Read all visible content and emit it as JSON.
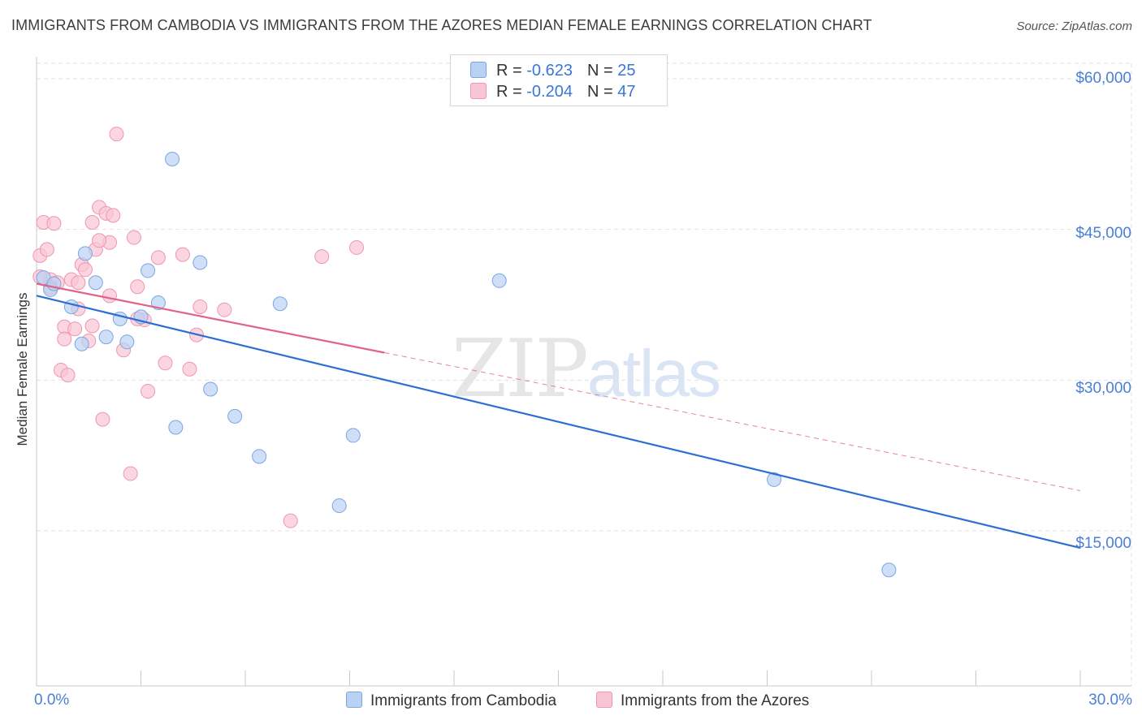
{
  "title": "IMMIGRANTS FROM CAMBODIA VS IMMIGRANTS FROM THE AZORES MEDIAN FEMALE EARNINGS CORRELATION CHART",
  "source": "Source: ZipAtlas.com",
  "watermark": {
    "part1": "ZIP",
    "part2": "atlas"
  },
  "legend": {
    "rows": [
      {
        "r_label": "R = ",
        "r_value": "-0.623",
        "n_label": "N = ",
        "n_value": "25",
        "color": "#a8c8f0"
      },
      {
        "r_label": "R = ",
        "r_value": "-0.204",
        "n_label": "N = ",
        "n_value": "47",
        "color": "#f7b6c8"
      }
    ]
  },
  "colors": {
    "cambodia_fill": "#b9d2f3",
    "cambodia_stroke": "#7aa7e2",
    "cambodia_line": "#2d6fd1",
    "azores_fill": "#f9c4d3",
    "azores_stroke": "#ee96b0",
    "azores_line": "#e0638c",
    "grid": "#e2e2e2",
    "axis_text": "#4a7fd4"
  },
  "chart_data": {
    "type": "scatter",
    "title": "IMMIGRANTS FROM CAMBODIA VS IMMIGRANTS FROM THE AZORES MEDIAN FEMALE EARNINGS CORRELATION CHART",
    "xlabel": "",
    "ylabel": "Median Female Earnings",
    "xlim": [
      0,
      30
    ],
    "ylim": [
      1500,
      62000
    ],
    "x_tick_labels": [
      "0.0%",
      "30.0%"
    ],
    "y_ticks": [
      15000,
      30000,
      45000,
      60000
    ],
    "y_tick_labels": [
      "$15,000",
      "$30,000",
      "$45,000",
      "$60,000"
    ],
    "grid": true,
    "legend_position": "top-center",
    "series": [
      {
        "name": "Immigrants from Cambodia",
        "points": [
          [
            0.2,
            40200
          ],
          [
            0.4,
            39000
          ],
          [
            0.5,
            39600
          ],
          [
            1.0,
            37300
          ],
          [
            1.4,
            42600
          ],
          [
            1.7,
            39700
          ],
          [
            2.0,
            34300
          ],
          [
            2.4,
            36100
          ],
          [
            2.6,
            33800
          ],
          [
            3.0,
            36300
          ],
          [
            3.2,
            40900
          ],
          [
            3.5,
            37700
          ],
          [
            3.9,
            52000
          ],
          [
            4.0,
            25300
          ],
          [
            4.7,
            41700
          ],
          [
            5.0,
            29100
          ],
          [
            5.7,
            26400
          ],
          [
            6.4,
            22400
          ],
          [
            7.0,
            37600
          ],
          [
            8.7,
            17500
          ],
          [
            9.1,
            24500
          ],
          [
            13.3,
            39900
          ],
          [
            21.2,
            20100
          ],
          [
            24.5,
            11100
          ],
          [
            1.3,
            33600
          ]
        ],
        "trend": {
          "x0": 0,
          "y0": 38400,
          "x1": 30,
          "y1": 13300,
          "dashed_from": null
        }
      },
      {
        "name": "Immigrants from the Azores",
        "points": [
          [
            0.1,
            42400
          ],
          [
            0.2,
            45700
          ],
          [
            0.3,
            43000
          ],
          [
            0.4,
            40000
          ],
          [
            0.5,
            45600
          ],
          [
            0.6,
            39700
          ],
          [
            0.8,
            35300
          ],
          [
            0.7,
            31000
          ],
          [
            0.8,
            34100
          ],
          [
            0.9,
            30500
          ],
          [
            1.0,
            40000
          ],
          [
            1.1,
            35100
          ],
          [
            1.2,
            37100
          ],
          [
            1.3,
            41500
          ],
          [
            1.4,
            41000
          ],
          [
            1.5,
            33900
          ],
          [
            1.6,
            35400
          ],
          [
            1.6,
            45700
          ],
          [
            1.7,
            43000
          ],
          [
            1.8,
            47200
          ],
          [
            1.9,
            26100
          ],
          [
            2.0,
            46600
          ],
          [
            2.1,
            38400
          ],
          [
            2.1,
            43700
          ],
          [
            2.2,
            46400
          ],
          [
            2.3,
            54500
          ],
          [
            2.5,
            33000
          ],
          [
            2.7,
            20700
          ],
          [
            2.8,
            44200
          ],
          [
            2.9,
            39300
          ],
          [
            3.1,
            36000
          ],
          [
            3.2,
            28900
          ],
          [
            3.5,
            42200
          ],
          [
            3.7,
            31700
          ],
          [
            4.2,
            42500
          ],
          [
            4.4,
            31100
          ],
          [
            4.6,
            34500
          ],
          [
            4.7,
            37300
          ],
          [
            5.4,
            37000
          ],
          [
            7.3,
            16000
          ],
          [
            8.2,
            42300
          ],
          [
            9.2,
            43200
          ],
          [
            0.1,
            40300
          ],
          [
            0.4,
            39200
          ],
          [
            1.2,
            39700
          ],
          [
            1.8,
            43900
          ],
          [
            2.9,
            36100
          ]
        ],
        "trend": {
          "x0": 0,
          "y0": 39600,
          "x1": 30,
          "y1": 19000,
          "dashed_from": 10
        }
      }
    ]
  },
  "bottom_legend": [
    {
      "label": "Immigrants from Cambodia"
    },
    {
      "label": "Immigrants from the Azores"
    }
  ]
}
